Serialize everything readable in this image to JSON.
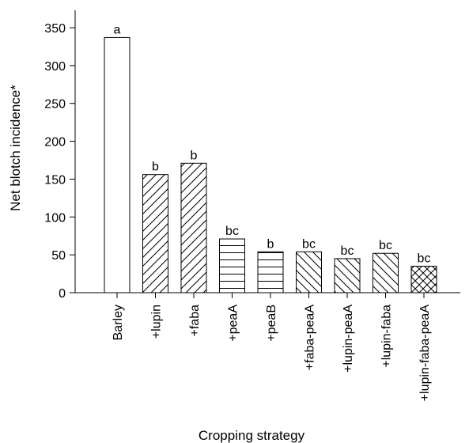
{
  "chart_data": {
    "type": "bar",
    "title": "",
    "xlabel": "Cropping strategy",
    "ylabel": "Net blotch incidence*",
    "ylim": [
      0,
      350
    ],
    "yticks": [
      0,
      50,
      100,
      150,
      200,
      250,
      300,
      350
    ],
    "categories": [
      "Barley",
      "+lupin",
      "+faba",
      "+peaA",
      "+peaB",
      "+faba-peaA",
      "+lupin-peaA",
      "+lupin-faba",
      "+lupin-faba-peaA"
    ],
    "values": [
      337,
      156,
      171,
      71,
      54,
      54,
      45,
      52,
      35
    ],
    "significance_letters": [
      "a",
      "b",
      "b",
      "bc",
      "b",
      "bc",
      "bc",
      "bc",
      "bc"
    ],
    "bar_patterns": [
      "none",
      "forward-diagonal",
      "forward-diagonal",
      "horizontal",
      "horizontal",
      "backward-diagonal",
      "backward-diagonal",
      "backward-diagonal",
      "cross-hatch"
    ],
    "grid": false,
    "legend": "none"
  }
}
